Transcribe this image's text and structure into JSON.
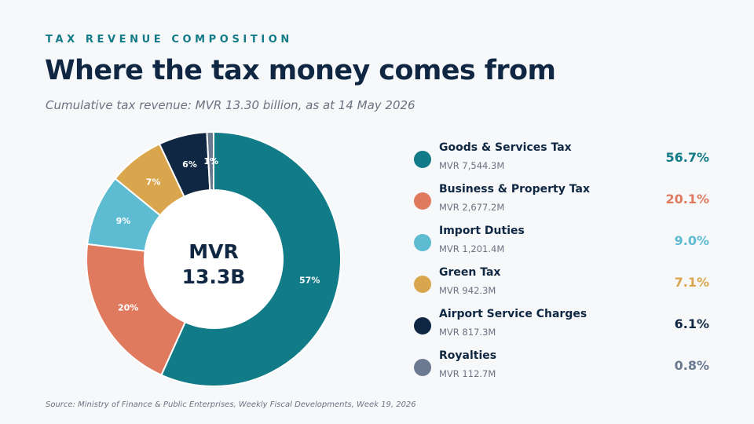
{
  "header": {
    "eyebrow": "TAX REVENUE COMPOSITION",
    "title": "Where the tax money comes from",
    "subtitle": "Cumulative tax revenue: MVR 13.30 billion, as at 14 May 2026"
  },
  "chart_data": {
    "type": "pie",
    "style": "donut",
    "center_label_line1": "MVR",
    "center_label_line2": "13.3B",
    "slices": [
      {
        "name": "Goods & Services Tax",
        "value_label": "MVR 7,544.3M",
        "value": 7544.3,
        "pct_label": "56.7%",
        "slice_label": "57%",
        "percent": 56.7,
        "color": "#117b87"
      },
      {
        "name": "Business & Property Tax",
        "value_label": "MVR 2,677.2M",
        "value": 2677.2,
        "pct_label": "20.1%",
        "slice_label": "20%",
        "percent": 20.1,
        "color": "#e07a5f"
      },
      {
        "name": "Import Duties",
        "value_label": "MVR 1,201.4M",
        "value": 1201.4,
        "pct_label": "9.0%",
        "slice_label": "9%",
        "percent": 9.0,
        "color": "#5dbcd2"
      },
      {
        "name": "Green Tax",
        "value_label": "MVR 942.3M",
        "value": 942.3,
        "pct_label": "7.1%",
        "slice_label": "7%",
        "percent": 7.1,
        "color": "#d9a64e"
      },
      {
        "name": "Airport Service Charges",
        "value_label": "MVR 817.3M",
        "value": 817.3,
        "pct_label": "6.1%",
        "slice_label": "6%",
        "percent": 6.1,
        "color": "#0f2742"
      },
      {
        "name": "Royalties",
        "value_label": "MVR 112.7M",
        "value": 112.7,
        "pct_label": "0.8%",
        "slice_label": "1%",
        "percent": 0.8,
        "color": "#6b7a90"
      }
    ],
    "legend_position": "right"
  },
  "footer": {
    "source": "Source: Ministry of Finance & Public Enterprises, Weekly Fiscal Developments, Week 19, 2026"
  }
}
